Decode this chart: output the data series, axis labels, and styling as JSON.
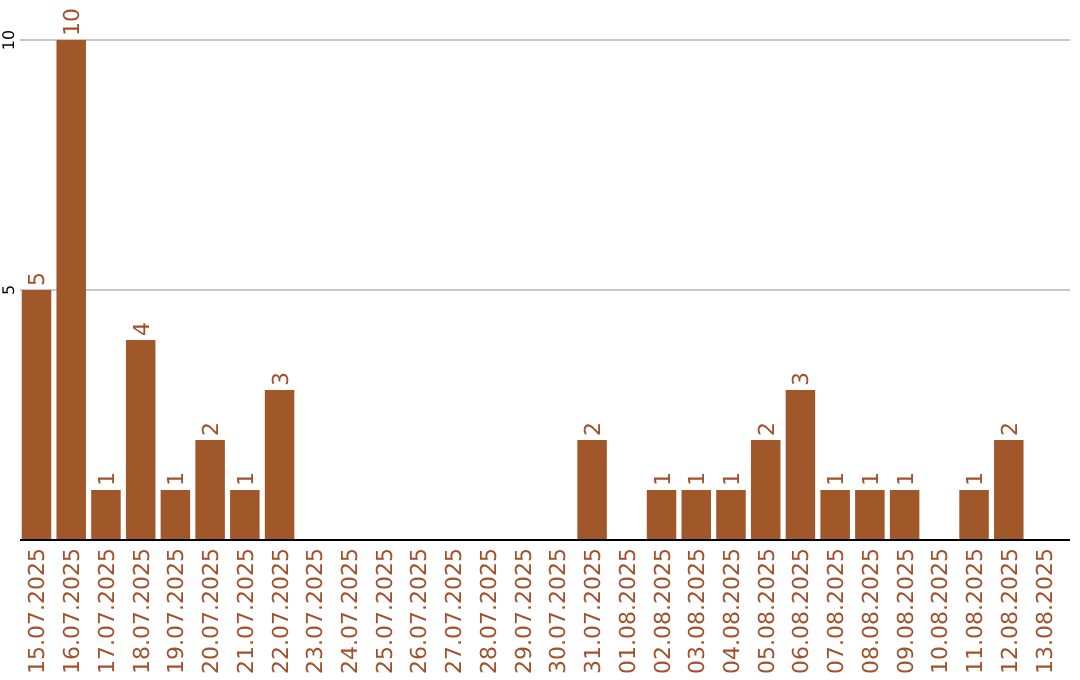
{
  "chart_data": {
    "type": "bar",
    "categories": [
      "15.07.2025",
      "16.07.2025",
      "17.07.2025",
      "18.07.2025",
      "19.07.2025",
      "20.07.2025",
      "21.07.2025",
      "22.07.2025",
      "23.07.2025",
      "24.07.2025",
      "25.07.2025",
      "26.07.2025",
      "27.07.2025",
      "28.07.2025",
      "29.07.2025",
      "30.07.2025",
      "31.07.2025",
      "01.08.2025",
      "02.08.2025",
      "03.08.2025",
      "04.08.2025",
      "05.08.2025",
      "06.08.2025",
      "07.08.2025",
      "08.08.2025",
      "09.08.2025",
      "10.08.2025",
      "11.08.2025",
      "12.08.2025",
      "13.08.2025"
    ],
    "values": [
      5,
      10,
      1,
      4,
      1,
      2,
      1,
      3,
      0,
      0,
      0,
      0,
      0,
      0,
      0,
      0,
      2,
      0,
      1,
      1,
      1,
      2,
      3,
      1,
      1,
      1,
      0,
      1,
      2,
      0
    ],
    "value_labels": [
      "5",
      "10",
      "1",
      "4",
      "1",
      "2",
      "1",
      "3",
      null,
      null,
      null,
      null,
      null,
      null,
      null,
      null,
      "2",
      null,
      "1",
      "1",
      "1",
      "2",
      "3",
      "1",
      "1",
      "1",
      null,
      "1",
      "2",
      null
    ],
    "color": "#a0582a",
    "ylim": [
      0,
      10
    ],
    "yticks": [
      5,
      10
    ],
    "grid": "y"
  }
}
